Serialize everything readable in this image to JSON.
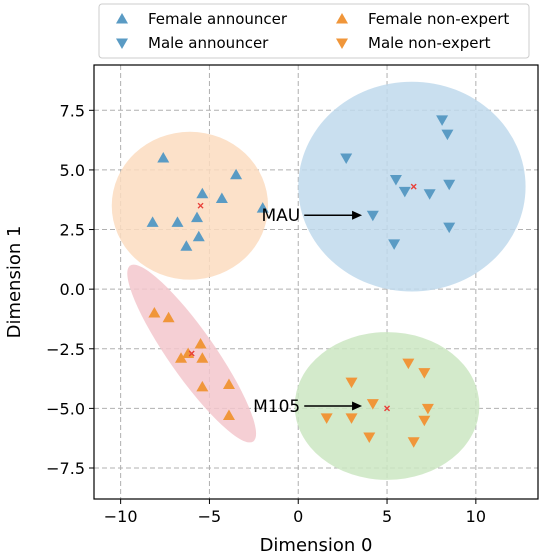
{
  "chart_data": {
    "type": "scatter",
    "xlabel": "Dimension 0",
    "ylabel": "Dimension 1",
    "xlim": [
      -11.5,
      13.5
    ],
    "ylim": [
      -8.8,
      9.4
    ],
    "xticks": [
      -10,
      -5,
      0,
      5,
      10
    ],
    "yticks": [
      -7.5,
      -5.0,
      -2.5,
      0.0,
      2.5,
      5.0,
      7.5
    ],
    "xtick_labels": [
      "−10",
      "−5",
      "0",
      "5",
      "10"
    ],
    "ytick_labels": [
      "−7.5",
      "−5.0",
      "−2.5",
      "0.0",
      "2.5",
      "5.0",
      "7.5"
    ],
    "grid": true,
    "legend": "top-center",
    "colors": {
      "blue": "#5a9bc4",
      "orange": "#f0963a",
      "centroid": "#e8413a"
    },
    "series": [
      {
        "name": "Female announcer",
        "marker": "triangle-up",
        "color": "#5a9bc4",
        "points": [
          [
            -7.6,
            5.5
          ],
          [
            -5.4,
            4.0
          ],
          [
            -3.5,
            4.8
          ],
          [
            -4.3,
            3.8
          ],
          [
            -8.2,
            2.8
          ],
          [
            -6.8,
            2.8
          ],
          [
            -5.7,
            3.0
          ],
          [
            -2.0,
            3.4
          ],
          [
            -5.6,
            2.2
          ],
          [
            -6.3,
            1.8
          ]
        ]
      },
      {
        "name": "Male announcer",
        "marker": "triangle-down",
        "color": "#5a9bc4",
        "points": [
          [
            2.7,
            5.5
          ],
          [
            8.1,
            7.1
          ],
          [
            8.4,
            6.5
          ],
          [
            5.5,
            4.6
          ],
          [
            6.0,
            4.1
          ],
          [
            7.4,
            4.0
          ],
          [
            8.5,
            4.4
          ],
          [
            4.2,
            3.1
          ],
          [
            8.5,
            2.6
          ],
          [
            5.4,
            1.9
          ]
        ]
      },
      {
        "name": "Female non-expert",
        "marker": "triangle-up",
        "color": "#f0963a",
        "points": [
          [
            -8.1,
            -1.0
          ],
          [
            -7.3,
            -1.2
          ],
          [
            -5.5,
            -2.3
          ],
          [
            -6.2,
            -2.7
          ],
          [
            -6.6,
            -2.9
          ],
          [
            -5.4,
            -2.9
          ],
          [
            -5.4,
            -4.1
          ],
          [
            -3.9,
            -4.0
          ],
          [
            -3.9,
            -5.3
          ]
        ]
      },
      {
        "name": "Male non-expert",
        "marker": "triangle-down",
        "color": "#f0963a",
        "points": [
          [
            3.0,
            -3.9
          ],
          [
            6.2,
            -3.1
          ],
          [
            7.1,
            -3.5
          ],
          [
            4.2,
            -4.8
          ],
          [
            7.3,
            -5.0
          ],
          [
            7.1,
            -5.5
          ],
          [
            1.6,
            -5.4
          ],
          [
            3.0,
            -5.4
          ],
          [
            4.0,
            -6.2
          ],
          [
            6.5,
            -6.4
          ]
        ]
      }
    ],
    "clusters": [
      {
        "fill": "#fcdcbf",
        "cx": -6.1,
        "cy": 3.5,
        "rx": 4.4,
        "ry": 3.1,
        "angle": 0
      },
      {
        "fill": "#c0d9ec",
        "cx": 6.4,
        "cy": 4.3,
        "rx": 6.4,
        "ry": 4.4,
        "angle": 0
      },
      {
        "fill": "#f3c7cc",
        "cx": -6.0,
        "cy": -2.7,
        "rx": 1.3,
        "ry": 4.5,
        "angle": -35
      },
      {
        "fill": "#cbe6c2",
        "cx": 5.0,
        "cy": -4.9,
        "rx": 5.2,
        "ry": 3.1,
        "angle": 0
      }
    ],
    "centroids": [
      [
        -5.5,
        3.5
      ],
      [
        6.5,
        4.3
      ],
      [
        -6.0,
        -2.7
      ],
      [
        5.0,
        -5.0
      ]
    ],
    "annotations": [
      {
        "text": "MAU",
        "target": [
          4.1,
          3.1
        ],
        "text_at": [
          0.0,
          3.1
        ]
      },
      {
        "text": "M105",
        "target": [
          4.1,
          -4.9
        ],
        "text_at": [
          0.0,
          -4.9
        ]
      }
    ]
  }
}
